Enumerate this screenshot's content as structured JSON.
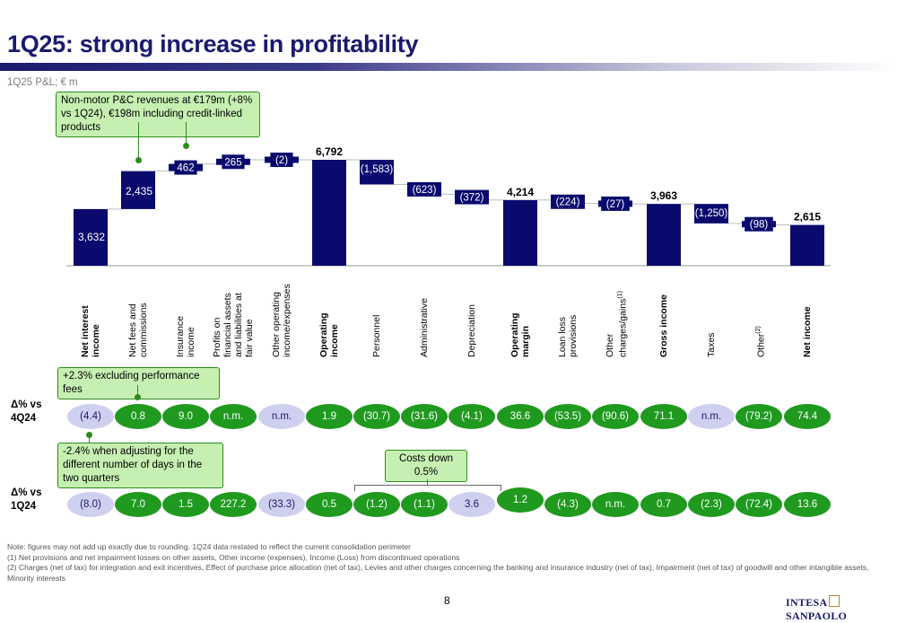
{
  "page": {
    "title": "1Q25: strong increase in profitability",
    "subtitle": "1Q25 P&L; € m",
    "page_number": "8",
    "logo_left": "INTESA",
    "logo_right": "SANPAOLO"
  },
  "callouts": {
    "insurance": "Non-motor P&C revenues at €179m (+8% vs 1Q24), €198m including credit-linked products",
    "fees": "+2.3% excluding performance fees",
    "nii": "-2.4% when adjusting for the different number of days in the two quarters",
    "costs": "Costs down 0.5%"
  },
  "rows": {
    "vs4q24_label": "Δ% vs\n4Q24",
    "vs1q24_label": "Δ% vs\n1Q24"
  },
  "chart_data": {
    "type": "bar",
    "subtype": "waterfall",
    "unit": "€ m",
    "categories": [
      "Net interest income",
      "Net fees and commissions",
      "Insurance income",
      "Profits on financial assets and liabilities at fair value",
      "Other operating income/expenses",
      "Operating income",
      "Personnel",
      "Administrative",
      "Depreciation",
      "Operating margin",
      "Loan loss provisions",
      "Other charges/gains(1)",
      "Gross income",
      "Taxes",
      "Other(2)",
      "Net income"
    ],
    "category_labels": [
      "Net interest\nincome",
      "Net fees and\ncommissions",
      "Insurance\nincome",
      "Profits on\nfinancial assets\nand liabilities at\nfair value",
      "Other operating\nincome/expenses",
      "Operating\nincome",
      "Personnel",
      "Administrative",
      "Depreciation",
      "Operating\nmargin",
      "Loan loss\nprovisions",
      "Other\ncharges/gains",
      "Gross income",
      "Taxes",
      "Other",
      "Net income"
    ],
    "category_superscripts": [
      "",
      "",
      "",
      "",
      "",
      "",
      "",
      "",
      "",
      "",
      "",
      "(1)",
      "",
      "",
      "(2)",
      ""
    ],
    "bold_categories": [
      0,
      5,
      9,
      12,
      15
    ],
    "values": [
      3632,
      2435,
      462,
      265,
      -2,
      6792,
      -1583,
      -623,
      -372,
      4214,
      -224,
      -27,
      3963,
      -1250,
      -98,
      2615
    ],
    "value_labels": [
      "3,632",
      "2,435",
      "462",
      "265",
      "(2)",
      "6,792",
      "(1,583)",
      "(623)",
      "(372)",
      "4,214",
      "(224)",
      "(27)",
      "3,963",
      "(1,250)",
      "(98)",
      "2,615"
    ],
    "bar_kinds": [
      "total",
      "delta",
      "delta",
      "delta",
      "delta",
      "total",
      "delta",
      "delta",
      "delta",
      "total",
      "delta",
      "delta",
      "total",
      "delta",
      "delta",
      "total"
    ],
    "delta_vs_4q24": [
      "(4.4)",
      "0.8",
      "9.0",
      "n.m.",
      "n.m.",
      "1.9",
      "(30.7)",
      "(31.6)",
      "(4.1)",
      "36.6",
      "(53.5)",
      "(90.6)",
      "71.1",
      "n.m.",
      "(79.2)",
      "74.4"
    ],
    "delta_vs_4q24_sign": [
      "neg",
      "pos",
      "pos",
      "pos",
      "neg",
      "pos",
      "pos",
      "pos",
      "pos",
      "pos",
      "pos",
      "pos",
      "pos",
      "neg",
      "pos",
      "pos"
    ],
    "delta_vs_1q24": [
      "(8.0)",
      "7.0",
      "1.5",
      "227.2",
      "(33.3)",
      "0.5",
      "(1.2)",
      "(1.1)",
      "3.6",
      "1.2",
      "(4.3)",
      "n.m.",
      "0.7",
      "(2.3)",
      "(72.4)",
      "13.6"
    ],
    "delta_vs_1q24_sign": [
      "neg",
      "pos",
      "pos",
      "pos",
      "neg",
      "pos",
      "pos",
      "pos",
      "neg",
      "pos",
      "pos",
      "pos",
      "pos",
      "pos",
      "pos",
      "pos"
    ],
    "colors": {
      "bar": "#0a0a6e",
      "pos": "#1f9a1f",
      "neg": "#cfcff0",
      "callout_fill": "#c6f0b2",
      "callout_border": "#2e8b1e"
    }
  },
  "footnotes": [
    "Note: figures may not add up exactly due to rounding. 1Q24 data restated to reflect the current consolidation perimeter",
    "(1)  Net provisions and net impairment losses on other assets, Other income (expenses), Income (Loss) from discontinued operations",
    "(2)  Charges (net of tax) for integration and exit incentives, Effect of purchase price allocation (net of tax), Levies and other charges concerning the banking and insurance industry (net of tax), Impairment (net of tax) of goodwill and other intangible assets,",
    "       Minority interests"
  ]
}
